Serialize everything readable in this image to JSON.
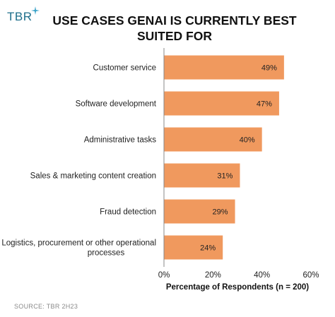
{
  "logo": {
    "text": "TBR"
  },
  "chart_data": {
    "type": "bar",
    "orientation": "horizontal",
    "title": "USE CASES GENAI IS CURRENTLY  BEST SUITED FOR",
    "categories": [
      "Customer service",
      "Software development",
      "Administrative tasks",
      "Sales & marketing content creation",
      "Fraud detection",
      "Logistics, procurement or other operational processes"
    ],
    "values": [
      49,
      47,
      40,
      31,
      29,
      24
    ],
    "value_labels": [
      "49%",
      "47%",
      "40%",
      "31%",
      "29%",
      "24%"
    ],
    "xlabel": "Percentage of Respondents (n = 200)",
    "ylabel": "",
    "xlim": [
      0,
      60
    ],
    "xticks": [
      0,
      20,
      40,
      60
    ],
    "xtick_labels": [
      "0%",
      "20%",
      "40%",
      "60%"
    ],
    "grid": false,
    "bar_color": "#f0995e"
  },
  "source": "SOURCE: TBR 2H23"
}
